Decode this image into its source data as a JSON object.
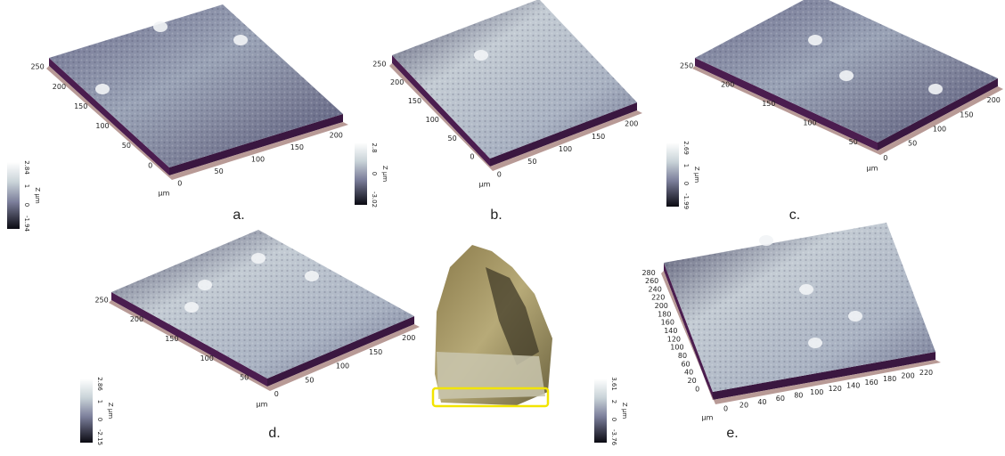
{
  "panels": [
    {
      "label": "a.",
      "colorbar": [
        "2.84",
        "1",
        "0",
        "-1.94"
      ],
      "z_unit": "Z µm",
      "unit": "µm",
      "x_ticks": [
        "0",
        "50",
        "100",
        "150",
        "200"
      ],
      "y_ticks": [
        "0",
        "50",
        "100",
        "150",
        "200",
        "250"
      ]
    },
    {
      "label": "b.",
      "colorbar": [
        "2.8",
        "0",
        "-3.02"
      ],
      "z_unit": "Z µm",
      "unit": "µm",
      "x_ticks": [
        "0",
        "50",
        "100",
        "150",
        "200"
      ],
      "y_ticks": [
        "0",
        "50",
        "100",
        "150",
        "200",
        "250"
      ]
    },
    {
      "label": "c.",
      "colorbar": [
        "2.69",
        "1",
        "0",
        "-1.99"
      ],
      "z_unit": "Z µm",
      "unit": "µm",
      "x_ticks": [
        "0",
        "50",
        "100",
        "150",
        "200"
      ],
      "y_ticks": [
        "50",
        "100",
        "150",
        "200",
        "250"
      ]
    },
    {
      "label": "d.",
      "colorbar": [
        "2.86",
        "1",
        "0",
        "-2.15"
      ],
      "z_unit": "Z µm",
      "unit": "µm",
      "x_ticks": [
        "0",
        "50",
        "100",
        "150",
        "200"
      ],
      "y_ticks": [
        "50",
        "100",
        "150",
        "200",
        "250"
      ]
    },
    {
      "label": "e.",
      "colorbar": [
        "3.61",
        "2",
        "0",
        "-3.76"
      ],
      "z_unit": "Z µm",
      "unit": "µm",
      "x_ticks": [
        "0",
        "20",
        "40",
        "60",
        "80",
        "100",
        "120",
        "140",
        "160",
        "180",
        "200",
        "220"
      ],
      "y_ticks": [
        "0",
        "20",
        "40",
        "60",
        "80",
        "100",
        "120",
        "140",
        "160",
        "180",
        "200",
        "220",
        "240",
        "260",
        "280"
      ]
    }
  ]
}
